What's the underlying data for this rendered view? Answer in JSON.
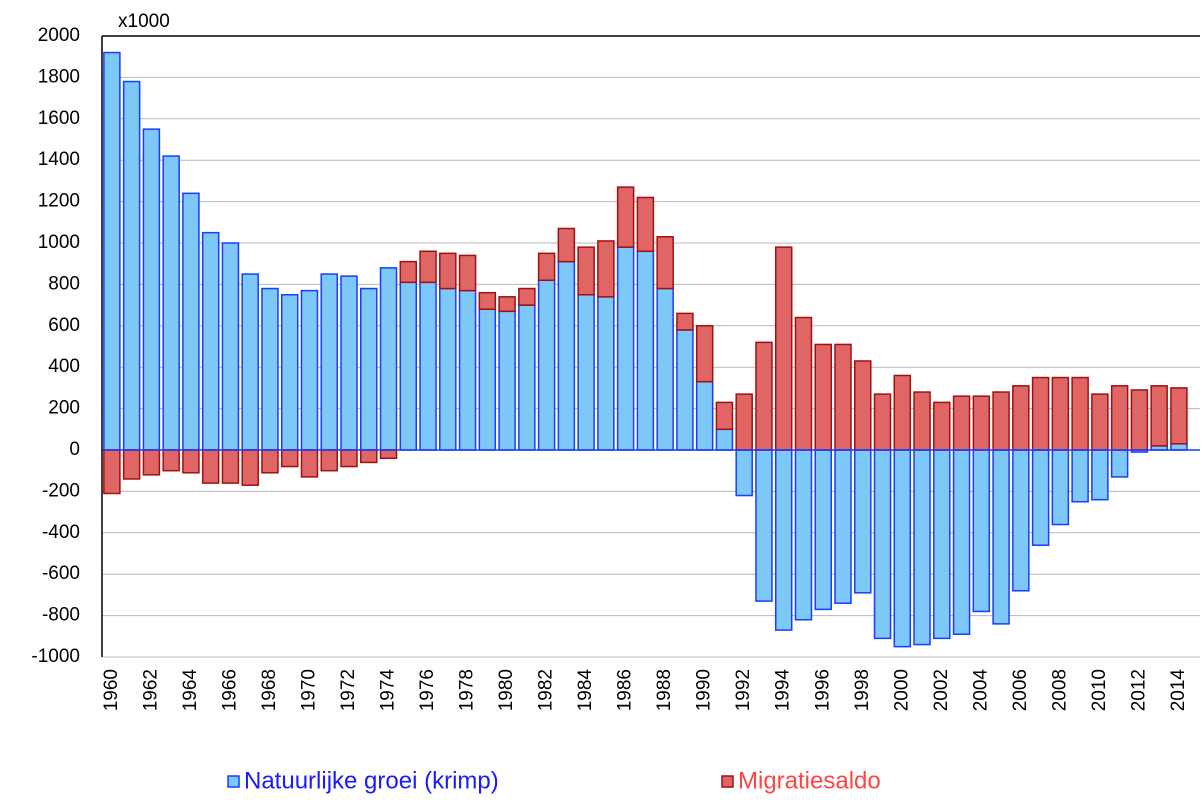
{
  "chart_data": {
    "type": "bar",
    "stacked": true,
    "unit_label": "x1000",
    "categories": [
      "1960",
      null,
      "1962",
      null,
      "1964",
      null,
      "1966",
      null,
      "1968",
      null,
      "1970",
      null,
      "1972",
      null,
      "1974",
      null,
      "1976",
      null,
      "1978",
      null,
      "1980",
      null,
      "1982",
      null,
      "1984",
      null,
      "1986",
      null,
      "1988",
      null,
      "1990",
      null,
      "1992",
      null,
      "1994",
      null,
      "1996",
      null,
      "1998",
      null,
      "2000",
      null,
      "2002",
      null,
      "2004",
      null,
      "2006",
      null,
      "2008",
      null,
      "2010",
      null,
      "2012",
      null,
      "2014"
    ],
    "series": [
      {
        "name": "Natuurlijke groei (krimp)",
        "color": "#7ec8f8",
        "edge": "#1a3cff",
        "text_color": "#1a1aff",
        "values": [
          1920,
          1780,
          1550,
          1420,
          1240,
          1050,
          1000,
          850,
          780,
          750,
          770,
          850,
          840,
          780,
          880,
          810,
          810,
          780,
          770,
          680,
          670,
          700,
          820,
          910,
          750,
          740,
          980,
          960,
          780,
          580,
          330,
          100,
          -220,
          -730,
          -870,
          -820,
          -770,
          -740,
          -690,
          -910,
          -950,
          -940,
          -910,
          -890,
          -780,
          -840,
          -680,
          -460,
          -360,
          -250,
          -240,
          -130,
          -10,
          20,
          30
        ]
      },
      {
        "name": "Migratiesaldo",
        "color": "#e06666",
        "edge": "#a01010",
        "text_color": "#ff4444",
        "values": [
          -210,
          -140,
          -120,
          -100,
          -110,
          -160,
          -160,
          -170,
          -110,
          -80,
          -130,
          -100,
          -80,
          -60,
          -40,
          100,
          150,
          170,
          170,
          80,
          70,
          80,
          130,
          160,
          230,
          270,
          290,
          260,
          250,
          80,
          270,
          130,
          270,
          520,
          980,
          640,
          510,
          510,
          430,
          270,
          360,
          280,
          230,
          260,
          260,
          280,
          310,
          350,
          350,
          350,
          270,
          310,
          290,
          290,
          270
        ]
      }
    ],
    "ylim": [
      -1000,
      2000
    ],
    "yticks": [
      -1000,
      -800,
      -600,
      -400,
      -200,
      0,
      200,
      400,
      600,
      800,
      1000,
      1200,
      1400,
      1600,
      1800,
      2000
    ],
    "grid": true
  }
}
